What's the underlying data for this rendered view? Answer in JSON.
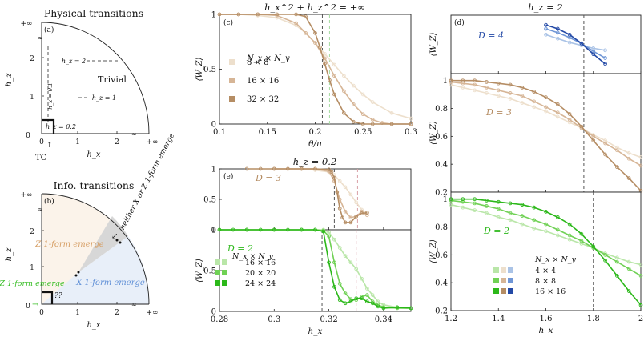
{
  "panel_a": {
    "title": "Physical transitions",
    "tag": "(a)",
    "region": "Trivial",
    "cut_labels": [
      "h_z = 2",
      "h_z = 1",
      "h_z = 0.2"
    ],
    "vertical_cut": "h_x = 0.1",
    "xlabel": "h_x",
    "ylabel": "h_z",
    "xticks": [
      "0",
      "1",
      "2",
      "+∞"
    ],
    "yticks": [
      "0",
      "1",
      "2",
      "+∞"
    ],
    "marker": "TC"
  },
  "panel_b": {
    "title": "Info. transitions",
    "tag": "(b)",
    "z_region": "Z 1-form emerge",
    "x_region": "X 1-form emerge",
    "neither": "neither X or Z 1-form emerge",
    "both": "both X&Z 1-form emerge",
    "unknown": "??",
    "xlabel": "h_x",
    "ylabel": "h_z",
    "xticks": [
      "0",
      "1",
      "2",
      "+∞"
    ],
    "yticks": [
      "0",
      "1",
      "2",
      "+∞"
    ]
  },
  "colors": {
    "beige_light": "#eddfcc",
    "beige_mid": "#d6b596",
    "beige_dark": "#b58d64",
    "green_light": "#b9e6a8",
    "green_mid": "#70d155",
    "green_dark": "#2cb81a",
    "blue_light": "#aac3e6",
    "blue_mid": "#6f96d6",
    "blue_dark": "#2349a6",
    "guide_green": "#a6dba0",
    "guide_pink": "#d9a0a8"
  },
  "chart_data": [
    {
      "id": "c",
      "type": "line",
      "tag": "(c)",
      "title": "h_x^2 + h_z^2 = +∞",
      "xlabel": "θ/π",
      "ylabel": "⟨W_Z⟩",
      "xlim": [
        0.1,
        0.3
      ],
      "ylim": [
        0,
        1
      ],
      "xticks": [
        "0.1",
        "0.15",
        "0.2",
        "0.25",
        "0.3"
      ],
      "yticks": [
        "0",
        "0.5",
        "1"
      ],
      "legend_title": "N_x × N_y",
      "legend": [
        "8 × 8",
        "16 × 16",
        "32 × 32"
      ],
      "vlines": [
        0.2075,
        0.215
      ],
      "series": [
        {
          "name": "8 × 8",
          "x": [
            0.1,
            0.12,
            0.14,
            0.16,
            0.18,
            0.19,
            0.2,
            0.21,
            0.22,
            0.23,
            0.24,
            0.25,
            0.26,
            0.28,
            0.3
          ],
          "y": [
            1,
            1,
            0.99,
            0.97,
            0.9,
            0.83,
            0.74,
            0.64,
            0.54,
            0.44,
            0.35,
            0.27,
            0.2,
            0.1,
            0.05
          ]
        },
        {
          "name": "16 × 16",
          "x": [
            0.1,
            0.12,
            0.14,
            0.16,
            0.18,
            0.19,
            0.2,
            0.21,
            0.22,
            0.23,
            0.24,
            0.25,
            0.26,
            0.27,
            0.28,
            0.3
          ],
          "y": [
            1,
            1,
            1,
            0.99,
            0.92,
            0.83,
            0.74,
            0.6,
            0.44,
            0.3,
            0.18,
            0.09,
            0.04,
            0.01,
            0,
            0
          ]
        },
        {
          "name": "32 × 32",
          "x": [
            0.1,
            0.12,
            0.14,
            0.16,
            0.18,
            0.19,
            0.2,
            0.205,
            0.21,
            0.215,
            0.22,
            0.23,
            0.24,
            0.25,
            0.26,
            0.28,
            0.3
          ],
          "y": [
            1,
            1,
            1,
            1,
            1,
            0.98,
            0.83,
            0.7,
            0.55,
            0.4,
            0.27,
            0.1,
            0.02,
            0,
            0,
            0,
            0
          ]
        }
      ]
    },
    {
      "id": "e_top",
      "type": "line",
      "tag": "(e)",
      "title": "h_z = 0.2",
      "ylabel": "",
      "label": "D = 3",
      "xlim": [
        0.28,
        0.35
      ],
      "ylim": [
        0,
        1
      ],
      "yticks": [
        "0",
        "0.5",
        "1"
      ],
      "vlines": [
        0.322,
        0.3305
      ],
      "series": [
        {
          "name": "16 × 16",
          "x": [
            0.3,
            0.305,
            0.31,
            0.315,
            0.32,
            0.322,
            0.324,
            0.326,
            0.328,
            0.33,
            0.332,
            0.334
          ],
          "y": [
            1,
            1,
            1,
            0.98,
            0.95,
            0.9,
            0.8,
            0.7,
            0.58,
            0.45,
            0.33,
            0.28
          ]
        },
        {
          "name": "20 × 20",
          "x": [
            0.3,
            0.305,
            0.31,
            0.315,
            0.32,
            0.322,
            0.324,
            0.326,
            0.328,
            0.33,
            0.332,
            0.334
          ],
          "y": [
            1,
            1,
            1,
            1,
            0.96,
            0.8,
            0.5,
            0.3,
            0.2,
            0.22,
            0.3,
            0.24
          ]
        },
        {
          "name": "24 × 24",
          "x": [
            0.29,
            0.295,
            0.3,
            0.305,
            0.31,
            0.315,
            0.32,
            0.321,
            0.322,
            0.323,
            0.324,
            0.325,
            0.326,
            0.328,
            0.33,
            0.332,
            0.334
          ],
          "y": [
            1,
            1,
            1,
            1,
            1,
            1,
            0.99,
            0.95,
            0.85,
            0.62,
            0.35,
            0.2,
            0.12,
            0.12,
            0.22,
            0.27,
            0.28
          ]
        }
      ]
    },
    {
      "id": "e_bottom",
      "type": "line",
      "xlabel": "h_x",
      "ylabel": "⟨W_Z⟩",
      "label": "D = 2",
      "xlim": [
        0.28,
        0.35
      ],
      "ylim": [
        0,
        1
      ],
      "xticks": [
        "0.28",
        "0.3",
        "0.32",
        "0.34"
      ],
      "yticks": [
        "0",
        "0.5",
        "1"
      ],
      "legend_title": "N_x × N_y",
      "legend": [
        "16 × 16",
        "20 × 20",
        "24 × 24"
      ],
      "vlines": [
        0.3175,
        0.33
      ],
      "series": [
        {
          "name": "16 × 16",
          "x": [
            0.28,
            0.29,
            0.3,
            0.31,
            0.315,
            0.318,
            0.32,
            0.322,
            0.324,
            0.326,
            0.328,
            0.33,
            0.332,
            0.334,
            0.336,
            0.338,
            0.34,
            0.345,
            0.35
          ],
          "y": [
            1,
            1,
            1,
            1,
            1,
            1,
            0.97,
            0.88,
            0.78,
            0.68,
            0.6,
            0.52,
            0.4,
            0.28,
            0.2,
            0.12,
            0.08,
            0.05,
            0.04
          ]
        },
        {
          "name": "20 × 20",
          "x": [
            0.28,
            0.29,
            0.3,
            0.31,
            0.315,
            0.318,
            0.32,
            0.322,
            0.324,
            0.326,
            0.328,
            0.33,
            0.332,
            0.334,
            0.336,
            0.338,
            0.34,
            0.345,
            0.35
          ],
          "y": [
            1,
            1,
            1,
            1,
            1,
            0.99,
            0.92,
            0.6,
            0.34,
            0.22,
            0.15,
            0.14,
            0.18,
            0.2,
            0.12,
            0.08,
            0.05,
            0.04,
            0.04
          ]
        },
        {
          "name": "24 × 24",
          "x": [
            0.28,
            0.285,
            0.29,
            0.295,
            0.3,
            0.305,
            0.31,
            0.315,
            0.318,
            0.32,
            0.322,
            0.324,
            0.326,
            0.328,
            0.33,
            0.332,
            0.334,
            0.336,
            0.338,
            0.34,
            0.345,
            0.35
          ],
          "y": [
            1,
            1,
            1,
            1,
            1,
            1,
            1,
            1,
            0.98,
            0.6,
            0.3,
            0.14,
            0.1,
            0.12,
            0.16,
            0.16,
            0.12,
            0.1,
            0.06,
            0.04,
            0.05,
            0.04
          ]
        }
      ]
    },
    {
      "id": "d_top",
      "type": "line",
      "tag": "(d)",
      "title": "h_z = 2",
      "ylabel": "⟨W_Z⟩",
      "label": "D = 4",
      "xlim": [
        1.2,
        2.0
      ],
      "ylim": [
        0.4,
        1.0
      ],
      "yticks": [],
      "vlines": [
        1.76
      ],
      "series": [
        {
          "name": "4 × 4",
          "x": [
            1.6,
            1.65,
            1.7,
            1.75,
            1.8,
            1.85
          ],
          "y": [
            0.8,
            0.76,
            0.72,
            0.69,
            0.66,
            0.64
          ]
        },
        {
          "name": "8 × 8",
          "x": [
            1.6,
            1.65,
            1.7,
            1.75,
            1.8,
            1.85
          ],
          "y": [
            0.86,
            0.82,
            0.77,
            0.71,
            0.63,
            0.56
          ]
        },
        {
          "name": "16 × 16",
          "x": [
            1.6,
            1.65,
            1.7,
            1.75,
            1.8,
            1.85
          ],
          "y": [
            0.9,
            0.86,
            0.8,
            0.71,
            0.6,
            0.5
          ]
        }
      ]
    },
    {
      "id": "d_mid",
      "type": "line",
      "ylabel": "⟨W_Z⟩",
      "label": "D = 3",
      "xlim": [
        1.2,
        2.0
      ],
      "ylim": [
        0.2,
        1.05
      ],
      "yticks": [
        "0.2",
        "0.4",
        "0.6",
        "0.8",
        "1"
      ],
      "vlines": [
        1.76
      ],
      "series": [
        {
          "name": "4 × 4",
          "x": [
            1.2,
            1.25,
            1.3,
            1.35,
            1.4,
            1.45,
            1.5,
            1.55,
            1.6,
            1.65,
            1.7,
            1.75,
            1.8,
            1.85,
            1.9,
            1.95,
            2.0
          ],
          "y": [
            0.97,
            0.95,
            0.93,
            0.91,
            0.89,
            0.87,
            0.84,
            0.81,
            0.78,
            0.74,
            0.7,
            0.66,
            0.61,
            0.57,
            0.52,
            0.48,
            0.45
          ]
        },
        {
          "name": "8 × 8",
          "x": [
            1.2,
            1.25,
            1.3,
            1.35,
            1.4,
            1.45,
            1.5,
            1.55,
            1.6,
            1.65,
            1.7,
            1.75,
            1.8,
            1.85,
            1.9,
            1.95,
            2.0
          ],
          "y": [
            0.99,
            0.98,
            0.97,
            0.95,
            0.93,
            0.91,
            0.89,
            0.85,
            0.81,
            0.77,
            0.72,
            0.66,
            0.6,
            0.55,
            0.5,
            0.44,
            0.39
          ]
        },
        {
          "name": "16 × 16",
          "x": [
            1.2,
            1.25,
            1.3,
            1.35,
            1.4,
            1.45,
            1.5,
            1.55,
            1.6,
            1.65,
            1.7,
            1.75,
            1.8,
            1.85,
            1.9,
            1.95,
            2.0
          ],
          "y": [
            1,
            1,
            1,
            0.99,
            0.98,
            0.97,
            0.95,
            0.92,
            0.88,
            0.83,
            0.76,
            0.67,
            0.57,
            0.47,
            0.38,
            0.3,
            0.21
          ]
        }
      ]
    },
    {
      "id": "d_bottom",
      "type": "line",
      "xlabel": "h_x",
      "ylabel": "⟨W_Z⟩",
      "label": "D = 2",
      "xlim": [
        1.2,
        2.0
      ],
      "ylim": [
        0.2,
        1.05
      ],
      "xticks": [
        "1.2",
        "1.4",
        "1.6",
        "1.8",
        "2"
      ],
      "yticks": [
        "0.2",
        "0.4",
        "0.6",
        "0.8",
        "1"
      ],
      "legend_title": "N_x × N_y",
      "legend": [
        "4 × 4",
        "8 × 8",
        "16 × 16"
      ],
      "vlines": [
        1.8
      ],
      "series": [
        {
          "name": "4 × 4",
          "x": [
            1.2,
            1.25,
            1.3,
            1.35,
            1.4,
            1.45,
            1.5,
            1.55,
            1.6,
            1.65,
            1.7,
            1.75,
            1.8,
            1.85,
            1.9,
            1.95,
            2.0
          ],
          "y": [
            0.96,
            0.94,
            0.92,
            0.9,
            0.87,
            0.85,
            0.82,
            0.79,
            0.77,
            0.74,
            0.71,
            0.68,
            0.65,
            0.61,
            0.58,
            0.55,
            0.53
          ]
        },
        {
          "name": "8 × 8",
          "x": [
            1.2,
            1.25,
            1.3,
            1.35,
            1.4,
            1.45,
            1.5,
            1.55,
            1.6,
            1.65,
            1.7,
            1.75,
            1.8,
            1.85,
            1.9,
            1.95,
            2.0
          ],
          "y": [
            0.99,
            0.98,
            0.97,
            0.95,
            0.93,
            0.9,
            0.88,
            0.85,
            0.82,
            0.78,
            0.74,
            0.7,
            0.65,
            0.6,
            0.55,
            0.5,
            0.45
          ]
        },
        {
          "name": "16 × 16",
          "x": [
            1.2,
            1.25,
            1.3,
            1.35,
            1.4,
            1.45,
            1.5,
            1.55,
            1.6,
            1.65,
            1.7,
            1.75,
            1.8,
            1.85,
            1.9,
            1.95,
            2.0
          ],
          "y": [
            1,
            1,
            1,
            0.99,
            0.98,
            0.97,
            0.96,
            0.94,
            0.91,
            0.87,
            0.82,
            0.75,
            0.66,
            0.56,
            0.45,
            0.34,
            0.24
          ]
        }
      ]
    }
  ]
}
